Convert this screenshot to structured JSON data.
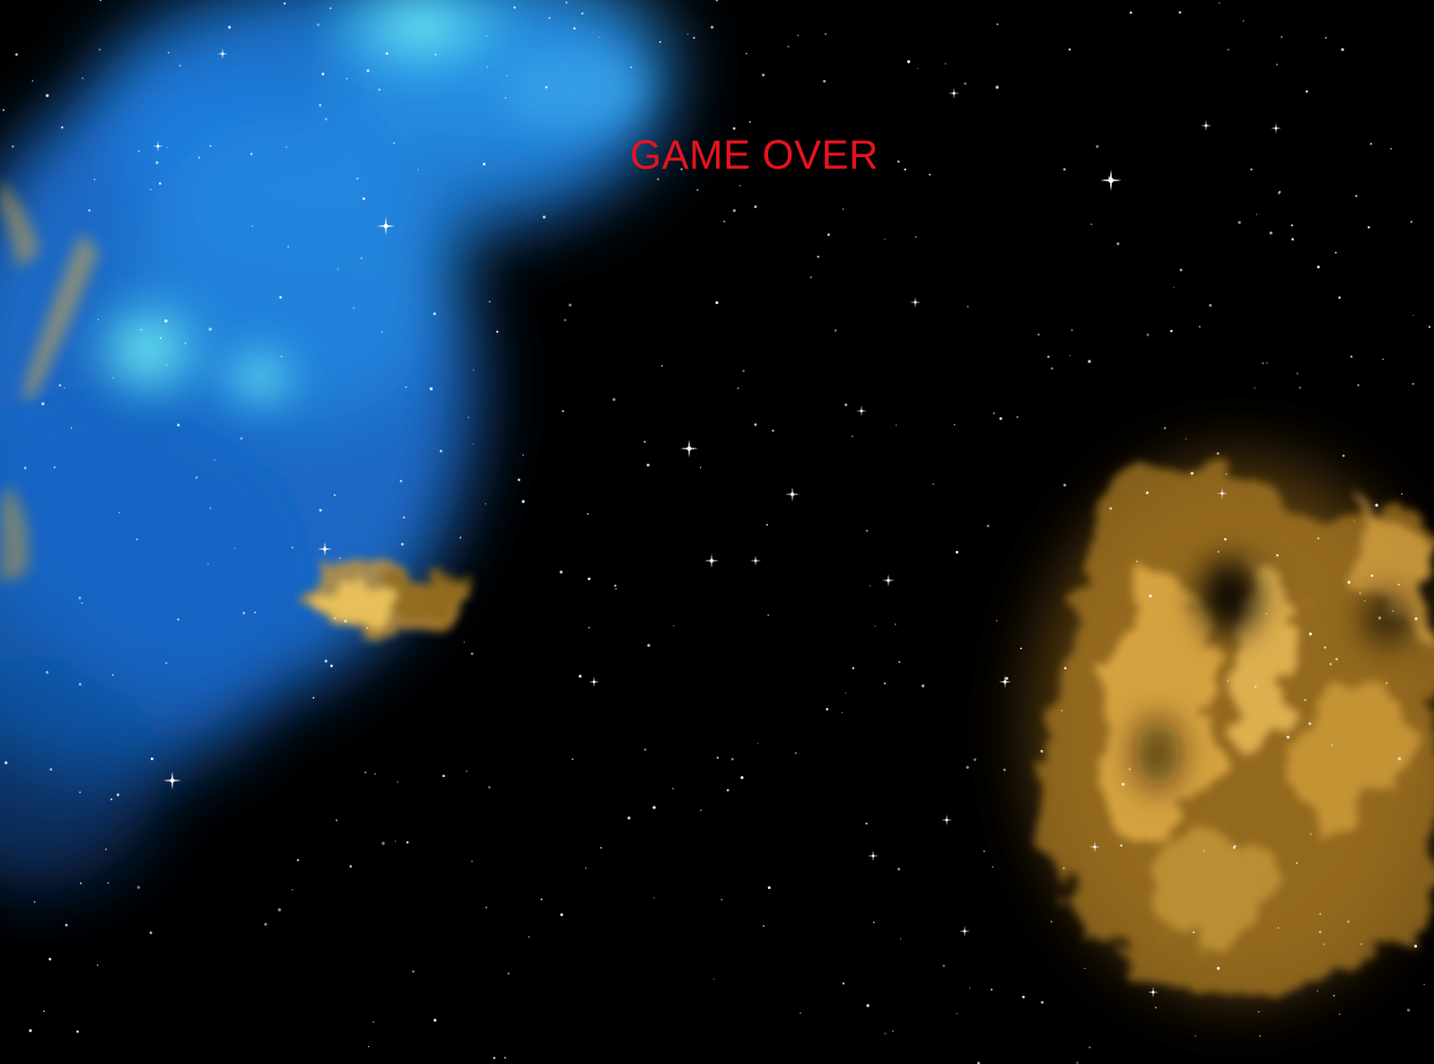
{
  "game": {
    "status_text": "GAME OVER",
    "status_color": "#e8131d"
  },
  "scene": {
    "background_color": "#000000",
    "star_color": "#ffffff",
    "nebula_colors": {
      "blue_core": "#6ff2f0",
      "blue_mid": "#2f9be8",
      "blue_outer": "#0f4d9a",
      "gold_bright": "#f3c45b",
      "gold_mid": "#c48f2a",
      "gold_dark": "#6b4a12"
    }
  }
}
